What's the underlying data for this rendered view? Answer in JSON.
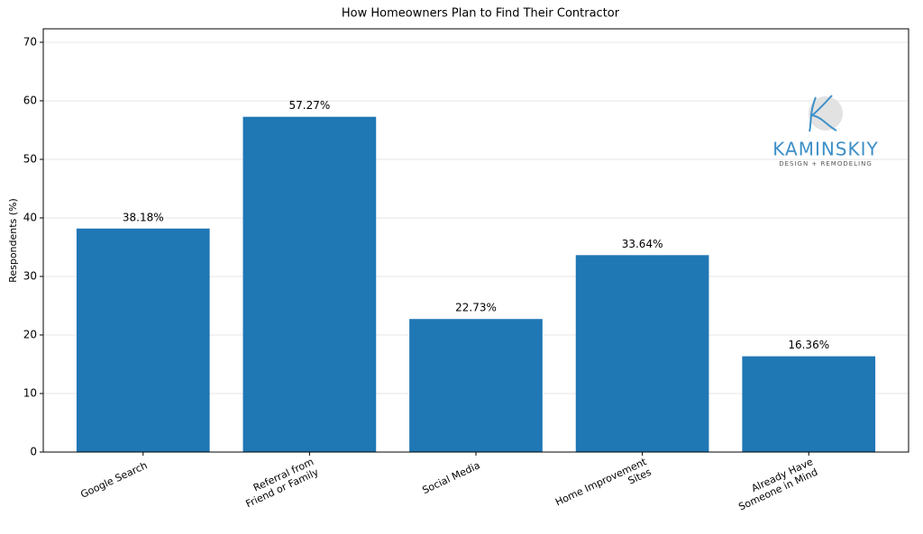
{
  "chart_data": {
    "type": "bar",
    "title": "How Homeowners Plan to Find Their Contractor",
    "ylabel": "Respondents (%)",
    "categories": [
      "Google Search",
      "Referral from\nFriend or Family",
      "Social Media",
      "Home Improvement\nSites",
      "Already Have\nSomeone in Mind"
    ],
    "values": [
      38.18,
      57.27,
      22.73,
      33.64,
      16.36
    ],
    "value_labels": [
      "38.18%",
      "57.27%",
      "22.73%",
      "33.64%",
      "16.36%"
    ],
    "color": "#1f77b4",
    "ylim": [
      0,
      72.3
    ],
    "yticks": [
      0,
      10,
      20,
      30,
      40,
      50,
      60,
      70
    ],
    "grid": true,
    "logo": {
      "name": "KAMINSKIY",
      "tagline": "DESIGN + REMODELING"
    }
  }
}
